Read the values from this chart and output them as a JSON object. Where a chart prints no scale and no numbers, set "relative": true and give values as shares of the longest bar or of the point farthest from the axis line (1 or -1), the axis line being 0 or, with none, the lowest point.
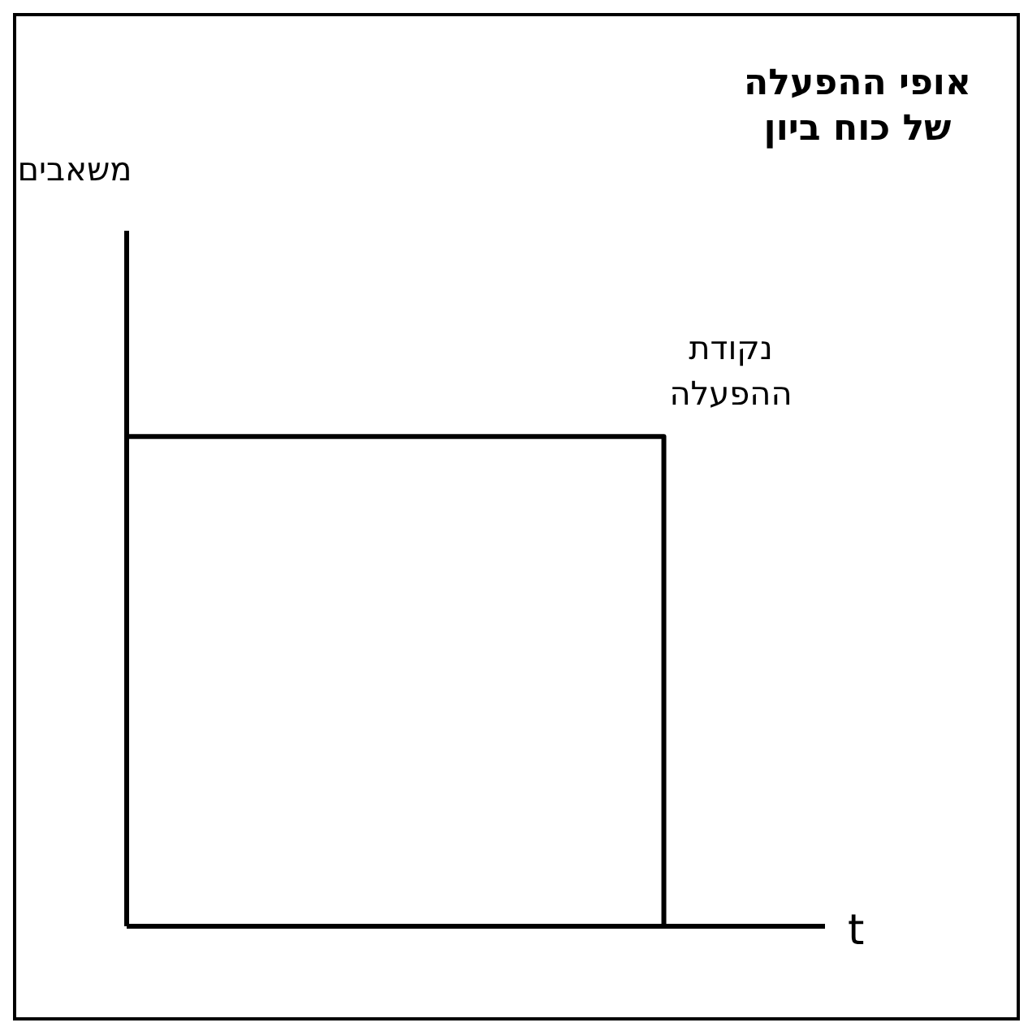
{
  "chart_data": {
    "type": "step",
    "title": "אופי ההפעלה\nשל כוח ביון",
    "xlabel": "t",
    "relative": true,
    "categories": [
      null,
      null,
      null,
      null,
      null,
      null,
      null,
      null,
      null,
      null,
      null,
      null,
      null,
      null
    ],
    "grid": false,
    "legend": false,
    "marker": "none",
    "line_style": "solid",
    "series": [
      {
        "color": "#000000",
        "values": [
          1,
          1,
          1,
          1,
          1,
          1,
          1,
          1,
          1,
          1,
          0,
          0,
          0,
          0
        ]
      }
    ],
    "annotations": [
      "משאבים",
      "נקודת\nההפעלה"
    ]
  }
}
